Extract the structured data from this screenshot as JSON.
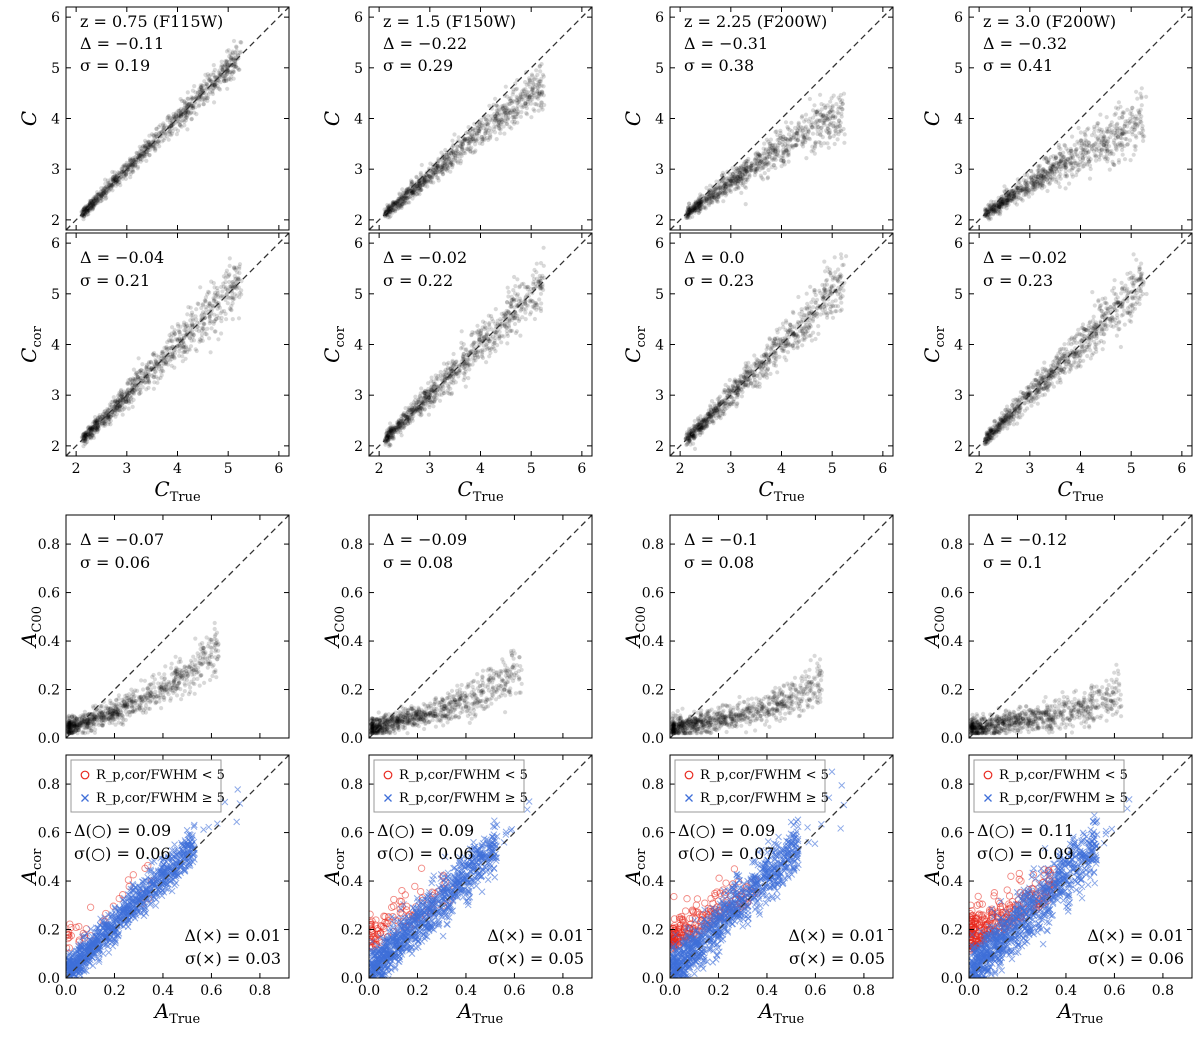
{
  "chart_data": {
    "type": "scatter",
    "columns": [
      {
        "filter_label": "z = 0.75 (F115W)",
        "C_offset": "Δ = −0.11",
        "C_scatter": "σ = 0.19",
        "Ccor_offset": "Δ = −0.04",
        "Ccor_scatter": "σ = 0.21",
        "A_offset": "Δ = −0.07",
        "A_scatter": "σ = 0.06",
        "Acor_circle_offset": "Δ(○) = 0.09",
        "Acor_circle_scatter": "σ(○) = 0.06",
        "Acor_cross_offset": "Δ(×) = 0.01",
        "Acor_cross_scatter": "σ(×) = 0.03",
        "c_sat": 5.5,
        "c_curve": 0.0,
        "c_spread": 0.1,
        "a_slope": 0.32,
        "a_curv": 0.9,
        "a_noise": 0.02,
        "red_frac": 0.04,
        "blue_noise": 0.03
      },
      {
        "filter_label": "z = 1.5 (F150W)",
        "C_offset": "Δ = −0.22",
        "C_scatter": "σ = 0.29",
        "Ccor_offset": "Δ = −0.02",
        "Ccor_scatter": "σ = 0.22",
        "A_offset": "Δ = −0.09",
        "A_scatter": "σ = 0.08",
        "Acor_circle_offset": "Δ(○) = 0.09",
        "Acor_circle_scatter": "σ(○) = 0.06",
        "Acor_cross_offset": "Δ(×) = 0.01",
        "Acor_cross_scatter": "σ(×) = 0.05",
        "c_sat": 4.7,
        "c_curve": 0.12,
        "c_spread": 0.15,
        "a_slope": 0.22,
        "a_curv": 0.7,
        "a_noise": 0.02,
        "red_frac": 0.12,
        "blue_noise": 0.04
      },
      {
        "filter_label": "z = 2.25 (F200W)",
        "C_offset": "Δ = −0.31",
        "C_scatter": "σ = 0.38",
        "Ccor_offset": "Δ = 0.0",
        "Ccor_scatter": "σ = 0.23",
        "A_offset": "Δ = −0.1",
        "A_scatter": "σ = 0.08",
        "Acor_circle_offset": "Δ(○) = 0.09",
        "Acor_circle_scatter": "σ(○) = 0.07",
        "Acor_cross_offset": "Δ(×) = 0.01",
        "Acor_cross_scatter": "σ(×) = 0.05",
        "c_sat": 4.1,
        "c_curve": 0.25,
        "c_spread": 0.2,
        "a_slope": 0.16,
        "a_curv": 0.6,
        "a_noise": 0.02,
        "red_frac": 0.25,
        "blue_noise": 0.045
      },
      {
        "filter_label": "z = 3.0 (F200W)",
        "C_offset": "Δ = −0.32",
        "C_scatter": "σ = 0.41",
        "Ccor_offset": "Δ = −0.02",
        "Ccor_scatter": "σ = 0.23",
        "A_offset": "Δ = −0.12",
        "A_scatter": "σ = 0.1",
        "Acor_circle_offset": "Δ(○) = 0.11",
        "Acor_circle_scatter": "σ(○) = 0.09",
        "Acor_cross_offset": "Δ(×) = 0.01",
        "Acor_cross_scatter": "σ(×) = 0.06",
        "c_sat": 3.9,
        "c_curve": 0.3,
        "c_spread": 0.22,
        "a_slope": 0.12,
        "a_curv": 0.55,
        "a_noise": 0.02,
        "red_frac": 0.35,
        "blue_noise": 0.05
      }
    ],
    "rows": [
      {
        "ylabel": "C",
        "xlabel": "",
        "range": [
          1.8,
          6.2
        ],
        "ticks": [
          2,
          3,
          4,
          5,
          6
        ]
      },
      {
        "ylabel": "C_cor",
        "xlabel": "C_True",
        "range": [
          1.8,
          6.2
        ],
        "ticks": [
          2,
          3,
          4,
          5,
          6
        ]
      },
      {
        "ylabel": "A_C00",
        "xlabel": "",
        "range": [
          0.0,
          0.92
        ],
        "ticks": [
          0.0,
          0.2,
          0.4,
          0.6,
          0.8
        ]
      },
      {
        "ylabel": "A_cor",
        "xlabel": "A_True",
        "range": [
          0.0,
          0.92
        ],
        "ticks": [
          0.0,
          0.2,
          0.4,
          0.6,
          0.8
        ]
      }
    ],
    "legend": {
      "placement": "top-left",
      "circle_label": "R_p,cor/FWHM < 5",
      "cross_label": "R_p,cor/FWHM ≥ 5"
    },
    "diagonal": "dashed one-to-one line",
    "colors": {
      "points": "#000000",
      "circle": "#e8281e",
      "cross": "#3f6fd8",
      "diagonal": "#333333"
    }
  }
}
